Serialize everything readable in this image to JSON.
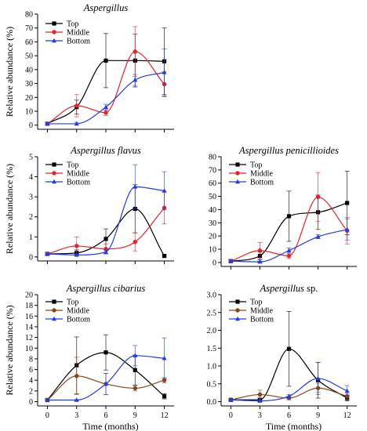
{
  "figure": {
    "ylabel": "Relative abundance (%)",
    "xlabel": "Time (months)"
  },
  "chart_data": [
    {
      "type": "line",
      "title": "Aspergillus",
      "title_suffix": "",
      "ylabel": "Relative abundance (%)",
      "xlabel": "",
      "x": [
        0,
        3,
        6,
        9,
        12
      ],
      "xticks": [
        "0",
        "3",
        "6",
        "9",
        "12"
      ],
      "show_xticklabels": false,
      "ylim": [
        -3,
        80
      ],
      "yticks": [
        "0",
        "10",
        "20",
        "30",
        "40",
        "50",
        "60",
        "70",
        "80"
      ],
      "series": [
        {
          "name": "Top",
          "color": "#000000",
          "values": [
            1,
            13,
            46.5,
            46.5,
            46
          ],
          "err": [
            1,
            5,
            19.5,
            19,
            24
          ]
        },
        {
          "name": "Middle",
          "color": "#e8202a",
          "values": [
            1,
            14,
            9,
            53,
            29.5
          ],
          "err": [
            1,
            8,
            2,
            18,
            9
          ]
        },
        {
          "name": "Bottom",
          "color": "#1f3ce6",
          "values": [
            1,
            1,
            13,
            32.5,
            38
          ],
          "err": [
            1,
            1,
            2,
            4,
            17
          ]
        }
      ]
    },
    {
      "type": "line",
      "title": "Aspergillus flavus",
      "title_suffix": "",
      "ylabel": "Relative abundance (%)",
      "xlabel": "",
      "x": [
        0,
        3,
        6,
        9,
        12
      ],
      "xticks": [
        "0",
        "3",
        "6",
        "9",
        "12"
      ],
      "show_xticklabels": false,
      "ylim": [
        -0.2,
        5
      ],
      "yticks": [
        "0",
        "1",
        "2",
        "3",
        "4",
        "5"
      ],
      "series": [
        {
          "name": "Top",
          "color": "#000000",
          "values": [
            0.15,
            0.2,
            0.9,
            2.4,
            0.05
          ],
          "err": [
            0.05,
            0.15,
            0.5,
            1.2,
            0.05
          ]
        },
        {
          "name": "Middle",
          "color": "#e8202a",
          "values": [
            0.15,
            0.55,
            0.4,
            0.75,
            2.45
          ],
          "err": [
            0.05,
            0.45,
            0.25,
            0.45,
            0.8
          ]
        },
        {
          "name": "Bottom",
          "color": "#1f3ce6",
          "values": [
            0.15,
            0.1,
            0.25,
            3.5,
            3.3
          ],
          "err": [
            0.05,
            0.05,
            0.1,
            1.1,
            0.95
          ]
        }
      ]
    },
    {
      "type": "line",
      "title": "Aspergillus penicillioides",
      "title_suffix": "",
      "ylabel": "",
      "xlabel": "",
      "x": [
        0,
        3,
        6,
        9,
        12
      ],
      "xticks": [
        "0",
        "3",
        "6",
        "9",
        "12"
      ],
      "show_xticklabels": false,
      "ylim": [
        -3,
        80
      ],
      "yticks": [
        "0",
        "10",
        "20",
        "30",
        "40",
        "50",
        "60",
        "70",
        "80"
      ],
      "series": [
        {
          "name": "Top",
          "color": "#000000",
          "values": [
            1,
            5,
            35,
            38,
            45
          ],
          "err": [
            1,
            3,
            19,
            13,
            24
          ]
        },
        {
          "name": "Middle",
          "color": "#e8202a",
          "values": [
            1,
            9,
            5,
            49.5,
            24
          ],
          "err": [
            1,
            6,
            2,
            18.5,
            10
          ]
        },
        {
          "name": "Bottom",
          "color": "#1f3ce6",
          "values": [
            1,
            0.5,
            9,
            19.5,
            25
          ],
          "err": [
            1,
            0.5,
            2,
            1.5,
            8
          ]
        }
      ]
    },
    {
      "type": "line",
      "title": "Aspergillus cibarius",
      "title_suffix": "",
      "ylabel": "Relative abundance (%)",
      "xlabel": "Time (months)",
      "x": [
        0,
        3,
        6,
        9,
        12
      ],
      "xticks": [
        "0",
        "3",
        "6",
        "9",
        "12"
      ],
      "show_xticklabels": true,
      "ylim": [
        -0.8,
        20
      ],
      "yticks": [
        "0",
        "2",
        "4",
        "6",
        "8",
        "10",
        "12",
        "14",
        "16",
        "18",
        "20"
      ],
      "series": [
        {
          "name": "Top",
          "color": "#000000",
          "values": [
            0.3,
            6.8,
            9.2,
            5.9,
            1.0
          ],
          "err": [
            0.1,
            5.3,
            3.3,
            2.8,
            0.5
          ]
        },
        {
          "name": "Middle",
          "color": "#8b4513",
          "values": [
            0.3,
            4.8,
            3.3,
            2.5,
            4.0
          ],
          "err": [
            0.1,
            3.5,
            2.0,
            0.5,
            0.5
          ]
        },
        {
          "name": "Bottom",
          "color": "#1f3ce6",
          "values": [
            0.3,
            0.3,
            3.3,
            8.6,
            8.1
          ],
          "err": [
            0.1,
            0.1,
            2.0,
            1.9,
            3.8
          ]
        }
      ]
    },
    {
      "type": "line",
      "title": "Aspergillus",
      "title_suffix": " sp.",
      "ylabel": "",
      "xlabel": "Time (months)",
      "x": [
        0,
        3,
        6,
        9,
        12
      ],
      "xticks": [
        "0",
        "3",
        "6",
        "9",
        "12"
      ],
      "show_xticklabels": true,
      "ylim": [
        -0.12,
        3.0
      ],
      "yticks": [
        "0.0",
        "0.5",
        "1.0",
        "1.5",
        "2.0",
        "2.5",
        "3.0"
      ],
      "series": [
        {
          "name": "Top",
          "color": "#000000",
          "values": [
            0.05,
            0.05,
            1.48,
            0.6,
            0.1
          ],
          "err": [
            0.02,
            0.05,
            1.05,
            0.5,
            0.08
          ]
        },
        {
          "name": "Middle",
          "color": "#8b4513",
          "values": [
            0.05,
            0.2,
            0.1,
            0.38,
            0.15
          ],
          "err": [
            0.02,
            0.12,
            0.05,
            0.12,
            0.08
          ]
        },
        {
          "name": "Bottom",
          "color": "#1f3ce6",
          "values": [
            0.05,
            0.02,
            0.15,
            0.65,
            0.3
          ],
          "err": [
            0.02,
            0.02,
            0.05,
            0.45,
            0.15
          ]
        }
      ]
    }
  ]
}
